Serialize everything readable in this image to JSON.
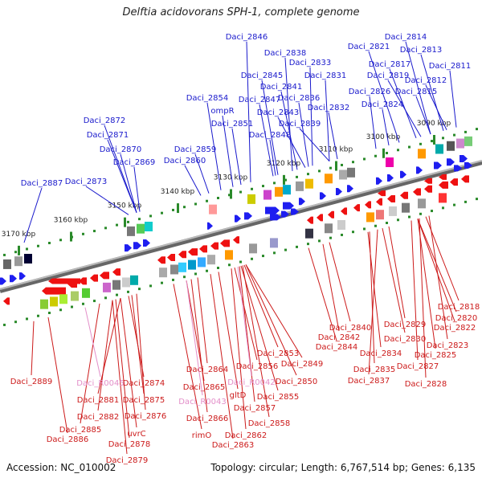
{
  "title": "Delftia acidovorans SPH-1, complete genome",
  "accession_text": "Accession: NC_010002",
  "topology_text": "Topology: circular; Length: 6,767,514 bp; Genes: 6,135",
  "colors": {
    "top_label": "#1a1acc",
    "bottom_label": "#cc1a1a",
    "rna_label": "#e38fc9",
    "forward_gene": "#1e1ef0",
    "reverse_gene": "#ee1111",
    "backbone": "#888888",
    "tick": "#2a8a2a"
  },
  "ticks": [
    "3090 kbp",
    "3100 kbp",
    "3110 kbp",
    "3120 kbp",
    "3130 kbp",
    "3140 kbp",
    "3150 kbp",
    "3160 kbp",
    "3170 kbp"
  ],
  "top_labels": [
    "Daci_2846",
    "Daci_2814",
    "Daci_2821",
    "Daci_2813",
    "Daci_2838",
    "Daci_2833",
    "Daci_2817",
    "Daci_2811",
    "Daci_2845",
    "Daci_2831",
    "Daci_2819",
    "Daci_2812",
    "Daci_2841",
    "Daci_2826",
    "Daci_2815",
    "Daci_2854",
    "Daci_2847",
    "Daci_2836",
    "ompR",
    "Daci_2843",
    "Daci_2832",
    "Daci_2824",
    "Daci_2872",
    "Daci_2851",
    "Daci_2839",
    "Daci_2871",
    "Daci_2848",
    "Daci_2870",
    "Daci_2859",
    "Daci_2869",
    "Daci_2860",
    "Daci_2887",
    "Daci_2873"
  ],
  "bottom_labels": [
    "Daci_2818",
    "Daci_2820",
    "Daci_2829",
    "Daci_2822",
    "Daci_2840",
    "Daci_2830",
    "Daci_2842",
    "Daci_2823",
    "Daci_2844",
    "Daci_2834",
    "Daci_2825",
    "Daci_2853",
    "Daci_2835",
    "Daci_2849",
    "Daci_2827",
    "Daci_2856",
    "Daci_2837",
    "Daci_2864",
    "Daci_2874",
    "Daci_2889",
    "Daci_2850",
    "Daci_2865",
    "Daci_2828",
    "Daci_2855",
    "gltD",
    "Daci_2881",
    "Daci_2875",
    "Daci_2857",
    "Daci_2882",
    "Daci_2876",
    "Daci_2866",
    "Daci_2858",
    "Daci_2885",
    "rimO",
    "uvrC",
    "Daci_2862",
    "Daci_2886",
    "Daci_2878",
    "Daci_2863",
    "Daci_2879"
  ],
  "rna_labels": [
    "Daci_R0045",
    "Daci_R0042",
    "Daci_R0043"
  ]
}
